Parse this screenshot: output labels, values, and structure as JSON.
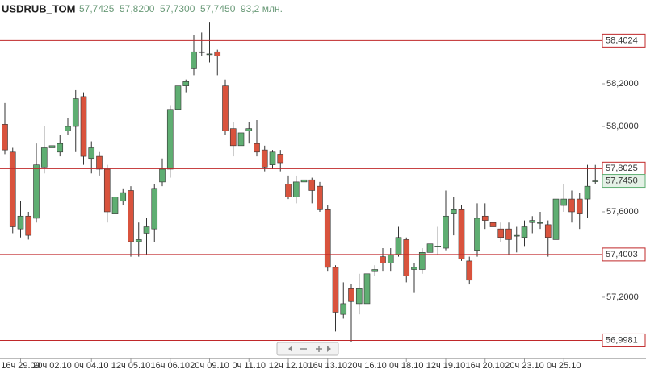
{
  "chart_data": {
    "type": "candlestick",
    "title": "USDRUB_TOM",
    "header_values": [
      {
        "value": 57.7425,
        "label": "57,7425"
      },
      {
        "value": 57.82,
        "label": "57,8200"
      },
      {
        "value": 57.73,
        "label": "57,7300"
      },
      {
        "value": 57.745,
        "label": "57,7450"
      }
    ],
    "volume": "93,2 млн.",
    "categories": [
      null,
      null,
      "16ч 29.09",
      null,
      null,
      null,
      "20ч 02.10",
      null,
      null,
      null,
      null,
      "0ч 04.10",
      null,
      null,
      null,
      null,
      "12ч 05.10",
      null,
      null,
      null,
      null,
      "16ч 06.10",
      null,
      null,
      null,
      null,
      "20ч 09.10",
      null,
      null,
      null,
      null,
      "0ч 11.10",
      null,
      null,
      null,
      null,
      "12ч 12.10",
      null,
      null,
      null,
      null,
      "16ч 13.10",
      null,
      null,
      null,
      null,
      "20ч 16.10",
      null,
      null,
      null,
      null,
      "0ч 18.10",
      null,
      null,
      null,
      null,
      "12ч 19.10",
      null,
      null,
      null,
      null,
      "16ч 20.10",
      null,
      null,
      null,
      null,
      "20ч 23.10",
      null,
      null,
      null,
      null,
      "0ч 25.10",
      null,
      null,
      null,
      null
    ],
    "open": [
      58.01,
      57.88,
      57.52,
      57.58,
      57.57,
      57.81,
      57.9,
      57.88,
      57.98,
      58.0,
      58.14,
      57.85,
      57.86,
      57.8,
      57.59,
      57.65,
      57.7,
      57.46,
      57.5,
      57.52,
      57.74,
      57.8,
      58.08,
      58.19,
      58.27,
      58.35,
      58.34,
      58.35,
      58.19,
      57.99,
      57.91,
      57.98,
      57.92,
      57.89,
      57.82,
      57.87,
      57.73,
      57.67,
      57.74,
      57.75,
      57.72,
      57.61,
      57.34,
      57.12,
      57.24,
      57.17,
      57.17,
      57.32,
      57.39,
      57.36,
      57.4,
      57.47,
      57.33,
      57.33,
      57.41,
      57.44,
      57.43,
      57.59,
      57.61,
      57.37,
      57.42,
      57.58,
      57.55,
      57.52,
      57.52,
      57.49,
      57.48,
      57.55,
      57.55,
      57.54,
      57.47,
      57.63,
      57.66,
      57.66,
      57.66,
      57.7425
    ],
    "high": [
      58.11,
      57.9,
      57.65,
      57.6,
      57.92,
      58.0,
      57.95,
      57.96,
      58.04,
      58.17,
      58.16,
      57.93,
      57.88,
      57.82,
      57.72,
      57.71,
      57.72,
      57.55,
      57.57,
      57.73,
      57.85,
      58.1,
      58.27,
      58.22,
      58.43,
      58.44,
      58.49,
      58.36,
      58.22,
      58.02,
      58.01,
      58.02,
      58.03,
      57.91,
      57.89,
      57.89,
      57.77,
      57.77,
      57.81,
      57.76,
      57.74,
      57.63,
      57.35,
      57.27,
      57.26,
      57.31,
      57.32,
      57.35,
      57.43,
      57.43,
      57.53,
      57.48,
      57.36,
      57.43,
      57.48,
      57.53,
      57.7,
      57.67,
      57.63,
      57.39,
      57.64,
      57.64,
      57.58,
      57.55,
      57.55,
      57.53,
      57.56,
      57.58,
      57.6,
      57.56,
      57.69,
      57.73,
      57.7,
      57.69,
      57.82,
      57.82
    ],
    "low": [
      57.87,
      57.5,
      57.48,
      57.47,
      57.55,
      57.78,
      57.87,
      57.86,
      57.96,
      57.88,
      57.82,
      57.78,
      57.77,
      57.55,
      57.56,
      57.63,
      57.39,
      57.39,
      57.4,
      57.46,
      57.72,
      57.76,
      58.06,
      58.16,
      58.24,
      58.33,
      58.3,
      58.24,
      57.96,
      57.86,
      57.8,
      57.92,
      57.86,
      57.79,
      57.8,
      57.79,
      57.66,
      57.64,
      57.66,
      57.64,
      57.6,
      57.32,
      57.04,
      57.1,
      56.99,
      57.12,
      57.14,
      57.3,
      57.32,
      57.32,
      57.39,
      57.27,
      57.22,
      57.31,
      57.36,
      57.4,
      57.42,
      57.49,
      57.37,
      57.26,
      57.39,
      57.52,
      57.4,
      57.46,
      57.4,
      57.41,
      57.44,
      57.5,
      57.52,
      57.39,
      57.46,
      57.6,
      57.55,
      57.52,
      57.57,
      57.73
    ],
    "close": [
      57.89,
      57.53,
      57.58,
      57.49,
      57.82,
      57.9,
      57.91,
      57.92,
      58.0,
      58.13,
      57.86,
      57.9,
      57.8,
      57.6,
      57.67,
      57.69,
      57.46,
      57.47,
      57.53,
      57.71,
      57.8,
      58.08,
      58.19,
      58.21,
      58.35,
      58.35,
      58.34,
      58.33,
      57.98,
      57.91,
      57.97,
      57.99,
      57.88,
      57.81,
      57.88,
      57.83,
      57.67,
      57.74,
      57.75,
      57.7,
      57.61,
      57.34,
      57.13,
      57.17,
      57.18,
      57.24,
      57.31,
      57.33,
      57.36,
      57.4,
      57.48,
      57.3,
      57.34,
      57.41,
      57.45,
      57.44,
      57.58,
      57.61,
      57.38,
      57.28,
      57.57,
      57.56,
      57.53,
      57.48,
      57.47,
      57.49,
      57.53,
      57.56,
      57.55,
      57.48,
      57.66,
      57.66,
      57.6,
      57.59,
      57.72,
      57.745
    ],
    "up_color": "#5fae72",
    "down_color": "#d9533d",
    "ylim": [
      56.913,
      58.5925
    ],
    "yticks": [
      {
        "value": 58.2,
        "label": "58,2000"
      },
      {
        "value": 58.0,
        "label": "58,0000"
      },
      {
        "value": 57.6,
        "label": "57,6000"
      },
      {
        "value": 57.2,
        "label": "57,2000"
      }
    ],
    "levels": [
      {
        "value": 58.4024,
        "label": "58,4024"
      },
      {
        "value": 57.8025,
        "label": "57,8025"
      },
      {
        "value": 57.4003,
        "label": "57,4003"
      },
      {
        "value": 56.9981,
        "label": "56,9981"
      }
    ],
    "level_color": "#c0282a",
    "last_price": {
      "value": 57.745,
      "label": "57,7450"
    }
  }
}
